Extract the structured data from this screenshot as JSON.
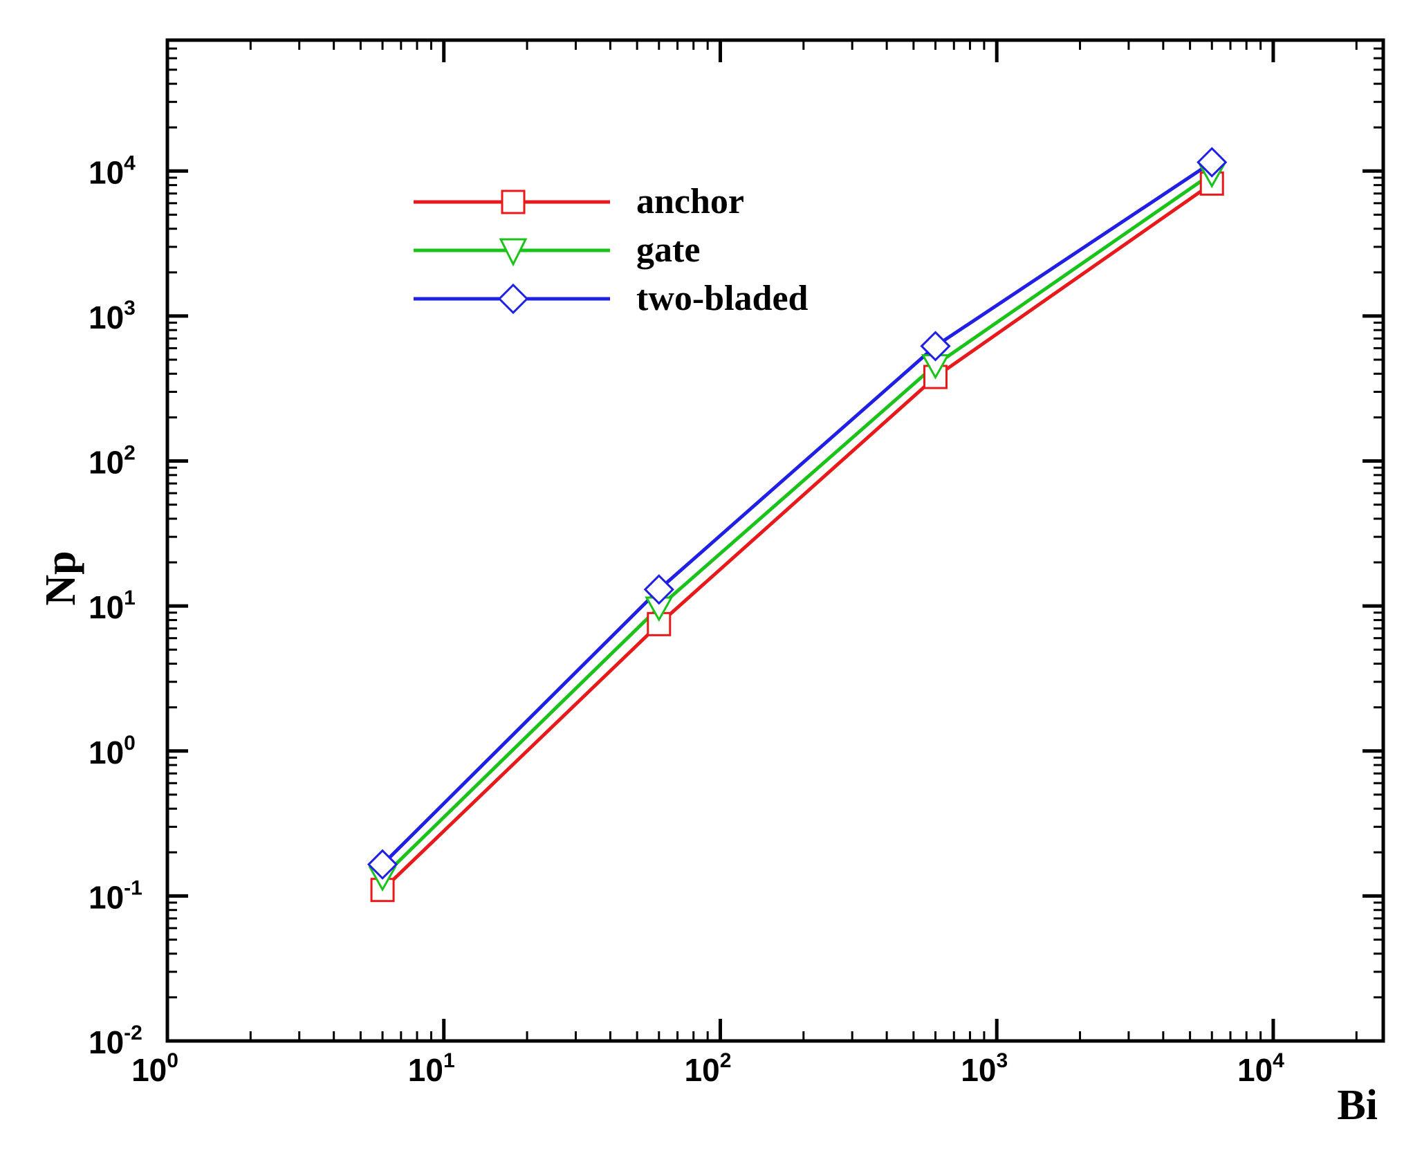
{
  "chart_data": {
    "type": "line",
    "scale": {
      "x": "log",
      "y": "log"
    },
    "xlabel": "Bi",
    "ylabel": "Np",
    "xlim": [
      1,
      25000
    ],
    "ylim": [
      0.01,
      80000
    ],
    "x_ticks": [
      {
        "base": "10",
        "exp": "0",
        "value": 1
      },
      {
        "base": "10",
        "exp": "1",
        "value": 10
      },
      {
        "base": "10",
        "exp": "2",
        "value": 100
      },
      {
        "base": "10",
        "exp": "3",
        "value": 1000
      },
      {
        "base": "10",
        "exp": "4",
        "value": 10000
      }
    ],
    "y_ticks": [
      {
        "base": "10",
        "exp": "-2",
        "value": 0.01
      },
      {
        "base": "10",
        "exp": "-1",
        "value": 0.1
      },
      {
        "base": "10",
        "exp": "0",
        "value": 1
      },
      {
        "base": "10",
        "exp": "1",
        "value": 10
      },
      {
        "base": "10",
        "exp": "2",
        "value": 100
      },
      {
        "base": "10",
        "exp": "3",
        "value": 1000
      },
      {
        "base": "10",
        "exp": "4",
        "value": 10000
      }
    ],
    "grid": false,
    "legend_position": "upper-left",
    "series": [
      {
        "name": "anchor",
        "color": "#e8191b",
        "marker": "square",
        "x": [
          6,
          60,
          600,
          6000
        ],
        "y": [
          0.11,
          7.5,
          380,
          8200
        ]
      },
      {
        "name": "gate",
        "color": "#19c319",
        "marker": "triangle-down",
        "x": [
          6,
          60,
          600,
          6000
        ],
        "y": [
          0.135,
          9.8,
          460,
          9600
        ]
      },
      {
        "name": "two-bladed",
        "color": "#1f1fe6",
        "marker": "diamond",
        "x": [
          6,
          60,
          600,
          6000
        ],
        "y": [
          0.165,
          13,
          620,
          11500
        ]
      }
    ]
  }
}
